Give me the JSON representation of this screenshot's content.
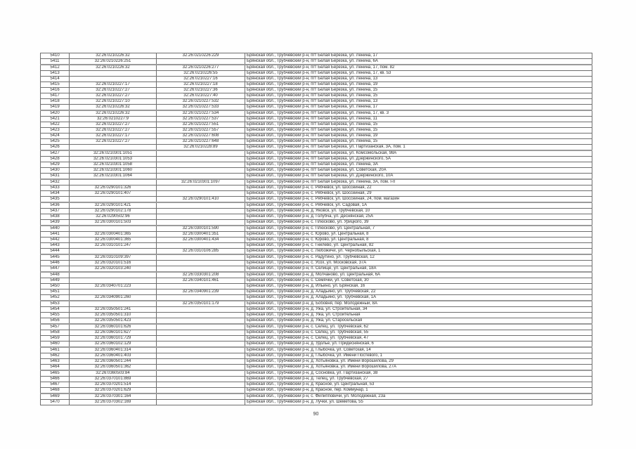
{
  "page": {
    "number": "90"
  },
  "colors": {
    "page_background": "#fefefe",
    "table_border": "#4a4a4a",
    "cell_border": "#6e6e6e",
    "text": "#2e2e2e"
  },
  "table": {
    "column_names": [
      "row-number",
      "cadastral-number-1",
      "cadastral-number-2",
      "address"
    ],
    "thick_border_rows": [
      "5412",
      "5420",
      "5427",
      "5432",
      "5436",
      "5440",
      "5445",
      "5448",
      "5453",
      "5457",
      "5461",
      "5465",
      "5469"
    ],
    "rows": [
      [
        "5410",
        "32:26:0210226:32",
        "32:26:0210226:229",
        "Брянская обл., Трубчевский р-н, пгт Белая Березка, ул. Ленина, 17"
      ],
      [
        "5411",
        "32:26:0210226:251",
        "",
        "Брянская обл., Трубчевский р-н, пгт Белая Березка, ул. Ленина, 6А"
      ],
      [
        "5412",
        "32:26:0210226:32",
        "32:26:0210226:277",
        "Брянская обл., Трубчевский р-н, пгт Белая Березка, ул. Ленина, 17, пом. 82"
      ],
      [
        "5413",
        "",
        "32:26:0210226:55",
        "Брянская обл., Трубчевский р-н, пгт Белая Березка, ул. Ленина, 17, кв. 53"
      ],
      [
        "5414",
        "",
        "32:26:0210227:16",
        "Брянская обл., Трубчевский р-н, пгт Белая Березка, ул. Ленина, 13"
      ],
      [
        "5415",
        "32:26:0210227:17",
        "32:26:0210227:18",
        "Брянская обл., Трубчевский р-н, пгт Белая Березка, ул. Ленина, 19"
      ],
      [
        "5416",
        "32:26:0210227:27",
        "32:26:0210227:36",
        "Брянская обл., Трубчевский р-н, пгт Белая Березка, ул. Ленина, 15"
      ],
      [
        "5417",
        "32:26:0210227:27",
        "32:26:0210227:40",
        "Брянская обл., Трубчевский р-н, пгт Белая Березка, ул. Ленина, 15"
      ],
      [
        "5418",
        "32:26:0210227:10",
        "32:26:0210227:532",
        "Брянская обл., Трубчевский р-н, пгт Белая Березка, ул. Ленина, 13"
      ],
      [
        "5419",
        "32:26:0210226:32",
        "32:26:0210227:533",
        "Брянская обл., Трубчевский р-н, пгт Белая Березка, ул. Ленина, 17"
      ],
      [
        "5420",
        "32:26:0210226:32",
        "32:26:0210227:534",
        "Брянская обл., Трубчевский р-н, пгт Белая Березка, ул. Ленина, 17, кв. 3"
      ],
      [
        "5421",
        "32:26:0210227:9",
        "32:26:0210227:537",
        "Брянская обл., Трубчевский р-н, пгт Белая Березка, ул. Ленина, 11"
      ],
      [
        "5422",
        "32:26:0210227:27",
        "32:26:0210227:551",
        "Брянская обл., Трубчевский р-н, пгт Белая Березка, ул. Ленина, 15"
      ],
      [
        "5423",
        "32:26:0210227:27",
        "32:26:0210227:557",
        "Брянская обл., Трубчевский р-н, пгт Белая Березка, ул. Ленина, 15"
      ],
      [
        "5424",
        "32:26:0210227:17",
        "32:26:0210227:608",
        "Брянская обл., Трубчевский р-н, пгт Белая Березка, ул. Ленина, 19"
      ],
      [
        "5425",
        "32:26:0210227:27",
        "32:26:0210227:648",
        "Брянская обл., Трубчевский р-н, пгт Белая Березка, ул. Ленина, 15"
      ],
      [
        "5426",
        "",
        "32:26:0210228:89",
        "Брянская обл., Трубчевский р-н, пгт Белая Березка, ул. Партизанская, 3А, пом. 1"
      ],
      [
        "5427",
        "32:26:0210301:1051",
        "",
        "Брянская обл., Трубчевский р-н, пгт Белая Березка, ул. Комсомольская, 98А"
      ],
      [
        "5428",
        "32:26:0210301:1053",
        "",
        "Брянская обл., Трубчевский р-н, пгт Белая Березка, ул. Дзержинского, 5А"
      ],
      [
        "5429",
        "32:26:0210301:1058",
        "",
        "Брянская обл., Трубчевский р-н, пгт Белая Березка, ул. Ленина, 3А"
      ],
      [
        "5430",
        "32:26:0210301:1060",
        "",
        "Брянская обл., Трубчевский р-н, пгт Белая Березка, ул. Советская, 20А"
      ],
      [
        "5431",
        "32:26:0210301:1064",
        "",
        "Брянская обл., Трубчевский р-н, пгт Белая Березка, ул. Дзержинского, 10А"
      ],
      [
        "5432",
        "",
        "32:26:0210301:1097",
        "Брянская обл., Трубчевский р-н, пгт Белая Березка, ул. Ленина, 3А, пом. I-II"
      ],
      [
        "5433",
        "32:26:0290101:326",
        "",
        "Брянская обл., Трубчевский р-н, с. Рябчевск, ул. Шоссейная, 22"
      ],
      [
        "5434",
        "32:26:0290101:407",
        "",
        "Брянская обл., Трубчевский р-н, с. Рябчевск, ул. Шоссейная, 29"
      ],
      [
        "5435",
        "",
        "32:26:0290101:410",
        "Брянская обл., Трубчевский р-н, с. Рябчевск, ул. Шоссейная, 24, пом. магазин"
      ],
      [
        "5436",
        "32:26:0290101:421",
        "",
        "Брянская обл., Трубчевский р-н, с. Рябчевск, ул. Садовая, 1А"
      ],
      [
        "5437",
        "32:26:0290102:178",
        "",
        "Брянская обл., Трубчевский р-н, д. Яковск, ул. Трубчевская, 10"
      ],
      [
        "5438",
        "32:26:0290502:96",
        "",
        "Брянская обл., Трубчевский р-н, д. Голубча, ул. Деснянская, 25А"
      ],
      [
        "5439",
        "32:26:0300101:503",
        "",
        "Брянская обл., Трубчевский р-н, с. Плюсково, ул. Урицкого, 39"
      ],
      [
        "5440",
        "",
        "32:26:0300101:590",
        "Брянская обл., Трубчевский р-н, с. Плюсково, ул. Центральная, 7"
      ],
      [
        "5441",
        "32:26:0300401:365",
        "32:26:0300401:351",
        "Брянская обл., Трубчевский р-н, с. Юрово, ул. Центральная, 8"
      ],
      [
        "5442",
        "32:26:0300401:365",
        "32:26:0300401:434",
        "Брянская обл., Трубчевский р-н, с. Юрово, ул. Центральная, 8"
      ],
      [
        "5443",
        "32:26:0310101:247",
        "",
        "Брянская обл., Трубчевский р-н, с. Гнилево, ул. Центральная, 82"
      ],
      [
        "5444",
        "",
        "32:26:0310106:285",
        "Брянская обл., Трубчевский р-н, с. Любожичи, ул. Чернобыльская, 1"
      ],
      [
        "5445",
        "32:26:0310109:397",
        "",
        "Брянская обл., Трубчевский р-н, с. Радутино, ул. Трубчевская, 12"
      ],
      [
        "5446",
        "32:26:0320101:516",
        "",
        "Брянская обл., Трубчевский р-н, с. Усох, ул. Московская, 37А"
      ],
      [
        "5447",
        "32:26:0320103:240",
        "",
        "Брянская обл., Трубчевский р-н, п. Селище, ул. Центральная, 18А"
      ],
      [
        "5448",
        "",
        "32:26:0330301:208",
        "Брянская обл., Трубчевский р-н, д. Молчаново, ул. Центральная, 6А"
      ],
      [
        "5449",
        "",
        "32:26:0340101:461",
        "Брянская обл., Трубчевский р-н, с. Семячки, ул. Советская, 30"
      ],
      [
        "5450",
        "32:26:0340701:223",
        "",
        "Брянская обл., Трубчевский р-н, д. Ильино, ул. Брянская, 16"
      ],
      [
        "5451",
        "",
        "32:26:0340901:239",
        "Брянская обл., Трубчевский р-н, д. Аладьино, ул. Трубчевская, 22"
      ],
      [
        "5452",
        "32:26:0340901:260",
        "",
        "Брянская обл., Трубчевский р-н, д. Аладьино, ул. Трубчевская, 1А"
      ],
      [
        "5453",
        "",
        "32:26:0350101:179",
        "Брянская обл., Трубчевский р-н, д. Бобовня, пер. Молодежный, 8А"
      ],
      [
        "5454",
        "32:26:0350501:241",
        "",
        "Брянская обл., Трубчевский р-н, д. Ужа, ул. Строительная, 34"
      ],
      [
        "5455",
        "32:26:0350501:310",
        "",
        "Брянская обл., Трубчевский р-н, д. Ужа, ул. Строительная"
      ],
      [
        "5456",
        "32:26:0350501:423",
        "",
        "Брянская обл., Трубчевский р-н, д. Ужа, ул. Старосельская"
      ],
      [
        "5457",
        "32:26:0360101:626",
        "",
        "Брянская обл., Трубчевский р-н, с. Селец, ул. Трубчевская, 62"
      ],
      [
        "5458",
        "32:26:0360101:627",
        "",
        "Брянская обл., Трубчевский р-н, с. Селец, ул. Трубчевская, 55"
      ],
      [
        "5459",
        "32:26:0360101:729",
        "",
        "Брянская обл., Трубчевский р-н, с. Селец, ул. Трубчевская, 47"
      ],
      [
        "5460",
        "32:26:0360102:129",
        "",
        "Брянская обл., Трубчевский р-н, д. Удолье, ул. Придеснянская, 6"
      ],
      [
        "5461",
        "32:26:0360401:314",
        "",
        "Брянская обл., Трубчевский р-н, д. Глыбочка, ул. Советская, 14"
      ],
      [
        "5462",
        "32:26:0360401:403",
        "",
        "Брянская обл., Трубчевский р-н, д. Глыбочка, ул. Имени Постевого, 1"
      ],
      [
        "5463",
        "32:26:0360501:244",
        "",
        "Брянская обл., Трубчевский р-н, д. Хотьяновка, ул. Имени Ворошилова, 29"
      ],
      [
        "5464",
        "32:26:0360501:362",
        "",
        "Брянская обл., Трубчевский р-н, д. Хотьяновка, ул. Имени Ворошилова, 27А"
      ],
      [
        "5465",
        "32:26:0360503:84",
        "",
        "Брянская обл., Трубчевский р-н, д. Сосновка, ул. Партизанская, 38"
      ],
      [
        "5466",
        "32:26:0370101:869",
        "",
        "Брянская обл., Трубчевский р-н, д. Телец, ул. Трубчевская, 27"
      ],
      [
        "5467",
        "32:26:0370201:514",
        "",
        "Брянская обл., Трубчевский р-н, д. Красное, ул. Центральная, 53"
      ],
      [
        "5468",
        "32:26:0370201:629",
        "",
        "Брянская обл., Трубчевский р-н, д. Красное, пер. Коммунар, 1"
      ],
      [
        "5469",
        "32:26:0370301:164",
        "",
        "Брянская обл., Трубчевский р-н, с. Филипповичи, ул. Молодежная, 23а"
      ],
      [
        "5470",
        "32:26:0370302:169",
        "",
        "Брянская обл., Трубчевский р-н, д. Лучки, ул. Шеметова, 55"
      ]
    ]
  }
}
